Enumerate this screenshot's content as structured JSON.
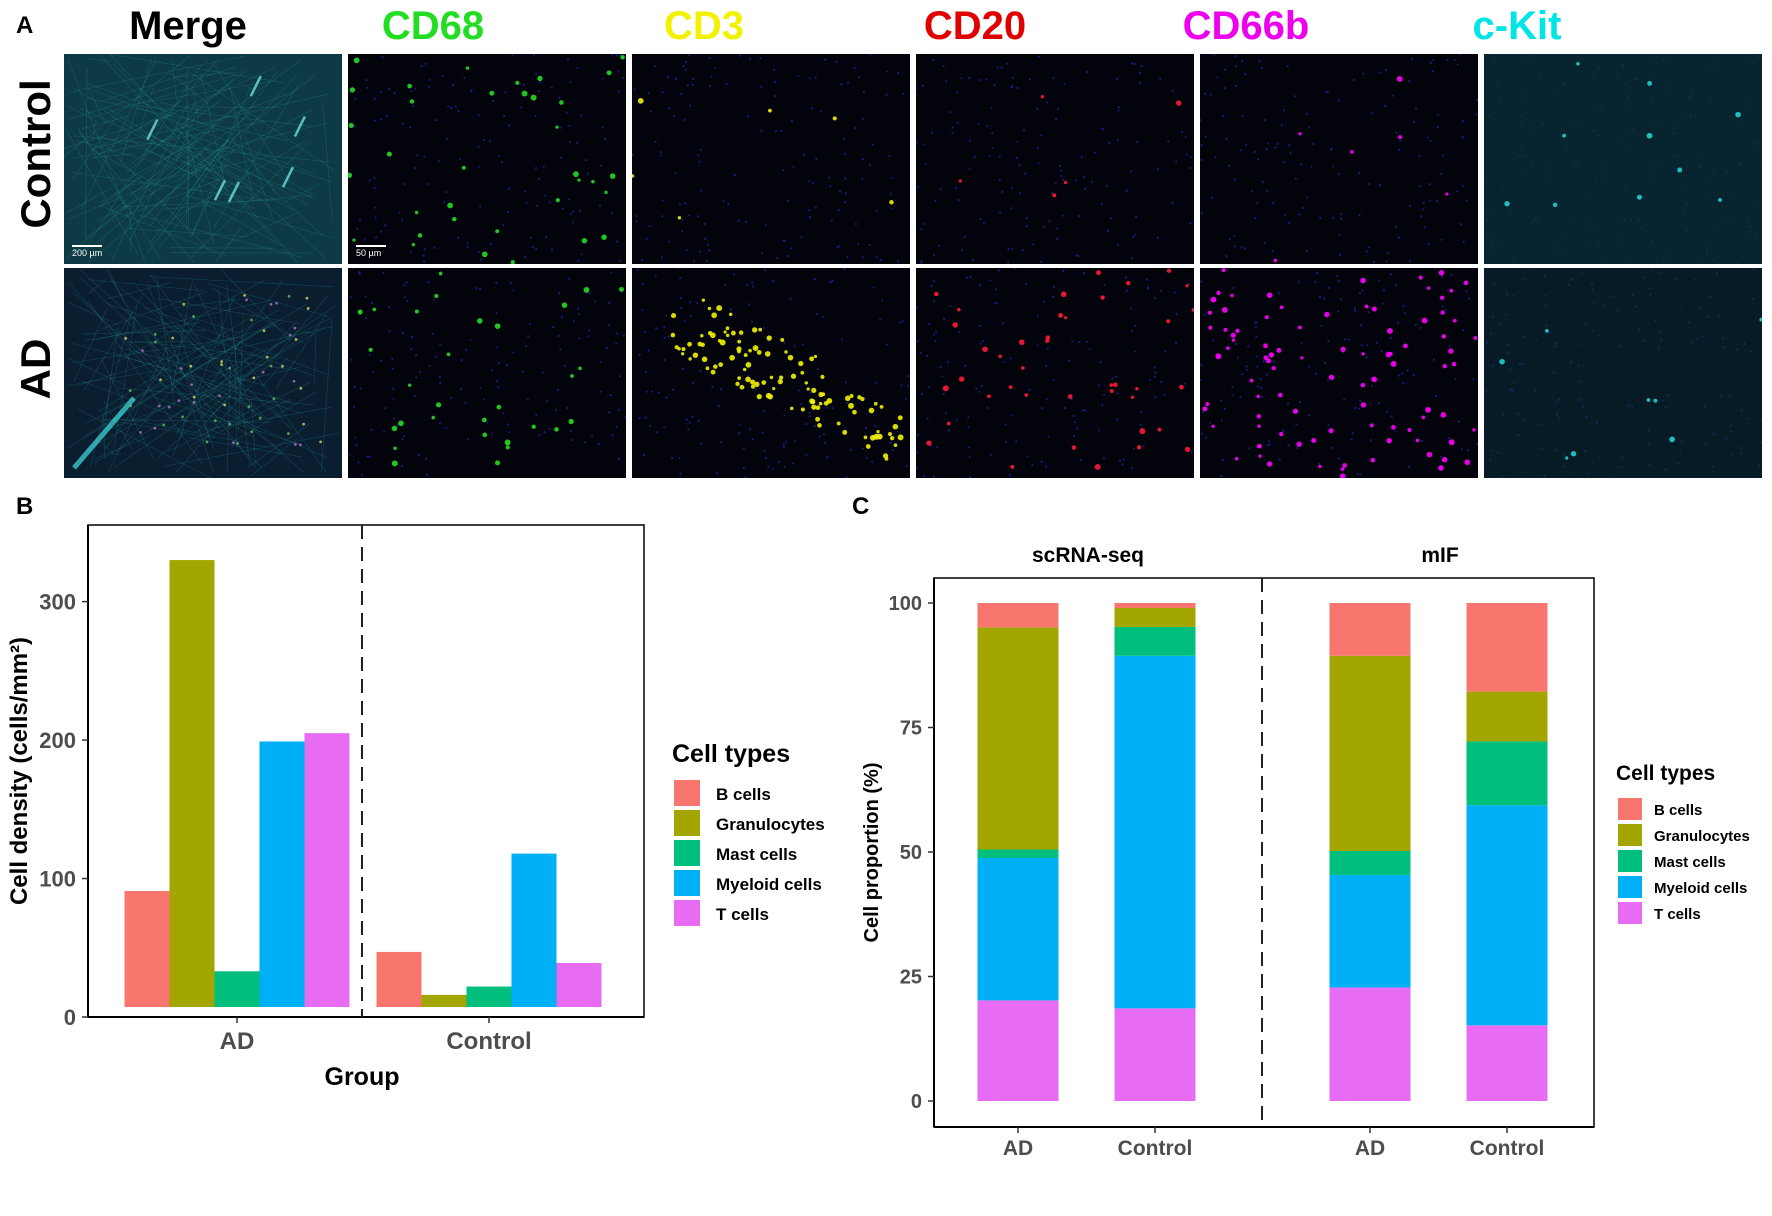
{
  "panel_labels": {
    "a": "A",
    "b": "B",
    "c": "C"
  },
  "panel_a": {
    "columns": [
      {
        "label": "Merge",
        "color": "#000000"
      },
      {
        "label": "CD68",
        "color": "#22dd22"
      },
      {
        "label": "CD3",
        "color": "#f2f200"
      },
      {
        "label": "CD20",
        "color": "#e00000"
      },
      {
        "label": "CD66b",
        "color": "#ee00ee"
      },
      {
        "label": "c-Kit",
        "color": "#00e5e5"
      }
    ],
    "rows": [
      "Control",
      "AD"
    ],
    "scale_bars": {
      "merge": "200 µm",
      "channel": "50 µm"
    },
    "channel_colors": {
      "merge": "#2ab5b5",
      "cd68": "#22dd22",
      "cd3": "#f2f200",
      "cd20": "#ff1a3a",
      "cd66b": "#ff00ff",
      "ckit": "#22d0d0",
      "nuclei": "#1a2aa8"
    },
    "icons": [
      "micrograph-merge-image",
      "micrograph-channel-image"
    ]
  },
  "chart_data": [
    {
      "type": "bar",
      "panel": "B",
      "categories": [
        "AD",
        "Control"
      ],
      "xlabel": "Group",
      "ylabel": "Cell density (cells/mm²)",
      "ylim": [
        0,
        350
      ],
      "yticks": [
        0,
        100,
        200,
        300
      ],
      "legend_title": "Cell types",
      "legend_position": "right",
      "grid": false,
      "series": [
        {
          "name": "B cells",
          "color": "#f8766d",
          "values": [
            91,
            47
          ]
        },
        {
          "name": "Granulocytes",
          "color": "#a3a500",
          "values": [
            330,
            16
          ]
        },
        {
          "name": "Mast cells",
          "color": "#00bf7d",
          "values": [
            33,
            22
          ]
        },
        {
          "name": "Myeloid cells",
          "color": "#00b0f6",
          "values": [
            199,
            118
          ]
        },
        {
          "name": "T cells",
          "color": "#e76bf3",
          "values": [
            205,
            39
          ]
        }
      ]
    },
    {
      "type": "bar",
      "panel": "C",
      "stacked": true,
      "facets": [
        {
          "label": "scRNA-seq",
          "categories": [
            "AD",
            "Control"
          ]
        },
        {
          "label": "mIF",
          "categories": [
            "AD",
            "Control"
          ]
        }
      ],
      "ylabel": "Cell proportion (%)",
      "ylim": [
        0,
        100
      ],
      "yticks": [
        0,
        25,
        50,
        75,
        100
      ],
      "legend_title": "Cell types",
      "legend_position": "right",
      "grid": false,
      "series": [
        {
          "name": "T cells",
          "color": "#e76bf3",
          "values": [
            20.2,
            18.6,
            22.8,
            15.2
          ]
        },
        {
          "name": "Myeloid cells",
          "color": "#00b0f6",
          "values": [
            28.6,
            70.8,
            22.6,
            44.2
          ]
        },
        {
          "name": "Mast cells",
          "color": "#00bf7d",
          "values": [
            1.7,
            5.8,
            4.8,
            12.8
          ]
        },
        {
          "name": "Granulocytes",
          "color": "#a3a500",
          "values": [
            44.6,
            3.8,
            39.2,
            10.0
          ]
        },
        {
          "name": "B cells",
          "color": "#f8766d",
          "values": [
            4.9,
            1.0,
            10.6,
            17.8
          ]
        }
      ]
    }
  ]
}
